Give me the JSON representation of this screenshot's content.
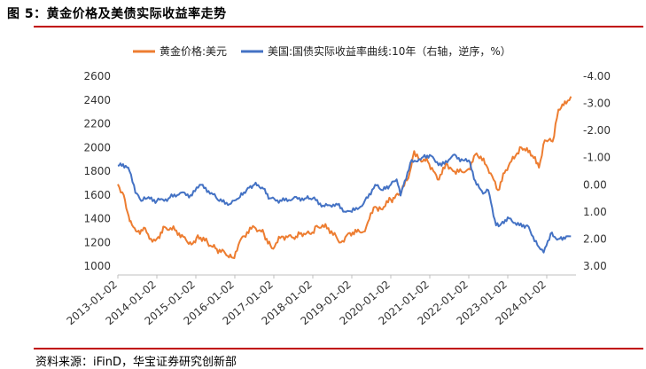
{
  "header": {
    "figure_title": "图 5：黄金价格及美债实际收益率走势",
    "source": "资料来源：iFinD，华宝证券研究创新部"
  },
  "colors": {
    "gold": "#ed7d31",
    "yield": "#4472c4",
    "rule": "#c00000"
  },
  "chart_data": {
    "type": "line",
    "title": "",
    "legend_placement": "top",
    "grid": false,
    "x_ticks": [
      "2013-01-02",
      "2014-01-02",
      "2015-01-02",
      "2016-01-02",
      "2017-01-02",
      "2018-01-02",
      "2019-01-02",
      "2020-01-02",
      "2021-01-02",
      "2022-01-02",
      "2023-01-02",
      "2024-01-02"
    ],
    "x_range": [
      2013.0,
      2024.75
    ],
    "left_axis": {
      "ticks": [
        "2600",
        "2400",
        "2200",
        "2000",
        "1800",
        "1600",
        "1400",
        "1200",
        "1000"
      ],
      "range": [
        1000,
        2600
      ]
    },
    "right_axis": {
      "ticks": [
        "-4.00",
        "-3.00",
        "-2.00",
        "-1.00",
        "0.00",
        "1.00",
        "2.00",
        "3.00"
      ],
      "range": [
        -4.0,
        3.0
      ],
      "reversed": true
    },
    "series": [
      {
        "name": "黄金价格:美元",
        "axis": "left",
        "x": [
          2013.0,
          2013.15,
          2013.28,
          2013.33,
          2013.5,
          2013.7,
          2013.85,
          2014.0,
          2014.2,
          2014.5,
          2014.75,
          2014.92,
          2015.05,
          2015.3,
          2015.5,
          2015.75,
          2015.95,
          2016.2,
          2016.5,
          2016.75,
          2016.95,
          2017.2,
          2017.5,
          2017.7,
          2017.95,
          2018.1,
          2018.4,
          2018.6,
          2018.72,
          2018.95,
          2019.3,
          2019.6,
          2019.75,
          2020.0,
          2020.2,
          2020.45,
          2020.6,
          2020.75,
          2020.95,
          2021.2,
          2021.45,
          2021.6,
          2021.85,
          2022.0,
          2022.2,
          2022.45,
          2022.75,
          2022.95,
          2023.2,
          2023.35,
          2023.7,
          2023.8,
          2023.95,
          2024.15,
          2024.3,
          2024.5,
          2024.62
        ],
        "values": [
          1690,
          1600,
          1420,
          1380,
          1290,
          1320,
          1230,
          1230,
          1330,
          1300,
          1220,
          1190,
          1260,
          1200,
          1150,
          1110,
          1070,
          1250,
          1330,
          1270,
          1150,
          1250,
          1240,
          1280,
          1270,
          1340,
          1320,
          1250,
          1200,
          1280,
          1290,
          1500,
          1480,
          1560,
          1600,
          1740,
          1970,
          1900,
          1880,
          1730,
          1860,
          1800,
          1790,
          1820,
          1950,
          1850,
          1640,
          1810,
          1930,
          2000,
          1920,
          1830,
          2060,
          2050,
          2320,
          2370,
          2430
        ]
      },
      {
        "name": "美国:国债实际收益率曲线:10年（右轴，逆序，%）",
        "axis": "right",
        "x": [
          2013.0,
          2013.2,
          2013.3,
          2013.45,
          2013.6,
          2013.75,
          2014.0,
          2014.3,
          2014.6,
          2014.9,
          2015.1,
          2015.4,
          2015.6,
          2015.9,
          2016.1,
          2016.3,
          2016.5,
          2016.7,
          2016.9,
          2017.2,
          2017.5,
          2017.8,
          2018.0,
          2018.3,
          2018.6,
          2018.85,
          2019.0,
          2019.3,
          2019.6,
          2019.8,
          2020.0,
          2020.15,
          2020.25,
          2020.5,
          2020.8,
          2021.0,
          2021.3,
          2021.6,
          2021.85,
          2022.0,
          2022.2,
          2022.4,
          2022.5,
          2022.7,
          2022.8,
          2023.0,
          2023.3,
          2023.5,
          2023.8,
          2023.92,
          2024.1,
          2024.3,
          2024.5,
          2024.62
        ],
        "values": [
          -0.7,
          -0.7,
          -0.5,
          0.3,
          0.6,
          0.5,
          0.6,
          0.5,
          0.3,
          0.4,
          0.0,
          0.3,
          0.6,
          0.7,
          0.5,
          0.2,
          0.0,
          0.1,
          0.5,
          0.6,
          0.5,
          0.5,
          0.5,
          0.8,
          0.7,
          1.0,
          1.0,
          0.7,
          0.0,
          0.2,
          0.0,
          -0.2,
          0.4,
          -0.8,
          -1.0,
          -1.1,
          -0.7,
          -1.1,
          -0.9,
          -0.9,
          0.0,
          0.3,
          0.2,
          1.5,
          1.5,
          1.2,
          1.5,
          1.5,
          2.3,
          2.5,
          1.8,
          2.0,
          1.9,
          1.9
        ]
      }
    ]
  }
}
